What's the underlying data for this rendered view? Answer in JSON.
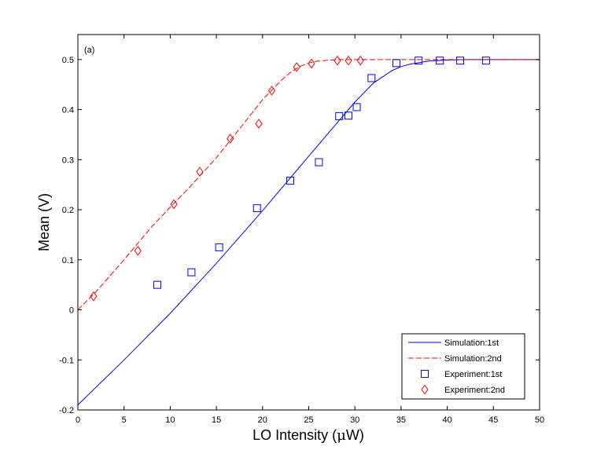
{
  "chart_data": {
    "type": "line",
    "annotation": "(a)",
    "xlabel_prefix": "LO Intensity (",
    "xlabel_mu": "μ",
    "xlabel_suffix": "W)",
    "ylabel": "Mean (V)",
    "xlim": [
      0,
      50
    ],
    "ylim": [
      -0.2,
      0.55
    ],
    "xticks": [
      0,
      5,
      10,
      15,
      20,
      25,
      30,
      35,
      40,
      45,
      50
    ],
    "yticks": [
      -0.2,
      -0.1,
      0,
      0.1,
      0.2,
      0.3,
      0.4,
      0.5
    ],
    "ytick_labels": [
      "-0.2",
      "-0.1",
      "0",
      "0.1",
      "0.2",
      "0.3",
      "0.4",
      "0.5"
    ],
    "grid": false,
    "legend_position": "bottom-right",
    "series": [
      {
        "name": "Simulation:1st",
        "kind": "line",
        "style": "solid",
        "color": "#0000ff",
        "x": [
          0,
          5,
          10,
          15,
          20,
          25,
          28,
          30,
          32,
          34,
          35,
          36,
          38,
          40,
          42,
          44,
          46,
          48,
          50
        ],
        "y": [
          -0.19,
          -0.1,
          -0.007,
          0.093,
          0.198,
          0.307,
          0.372,
          0.415,
          0.453,
          0.478,
          0.486,
          0.491,
          0.497,
          0.499,
          0.5,
          0.5,
          0.5,
          0.5,
          0.5
        ]
      },
      {
        "name": "Simulation:2nd",
        "kind": "line",
        "style": "dashed",
        "color": "#ff0000",
        "x": [
          0,
          2,
          5,
          8,
          10,
          12,
          15,
          18,
          20,
          22,
          23,
          24,
          25,
          26,
          28,
          30,
          35,
          40,
          45,
          50
        ],
        "y": [
          0,
          0.037,
          0.1,
          0.166,
          0.205,
          0.243,
          0.304,
          0.373,
          0.42,
          0.458,
          0.474,
          0.486,
          0.493,
          0.497,
          0.5,
          0.5,
          0.5,
          0.5,
          0.5,
          0.5
        ]
      },
      {
        "name": "Experiment:1st",
        "kind": "scatter",
        "marker": "square",
        "color": "#0000ff",
        "x": [
          8.6,
          12.3,
          15.3,
          19.4,
          23.0,
          26.1,
          28.3,
          29.3,
          30.2,
          31.8,
          34.5,
          36.9,
          39.2,
          41.4,
          44.2
        ],
        "y": [
          0.05,
          0.075,
          0.125,
          0.203,
          0.258,
          0.295,
          0.387,
          0.388,
          0.405,
          0.463,
          0.493,
          0.498,
          0.498,
          0.498,
          0.498
        ]
      },
      {
        "name": "Experiment:2nd",
        "kind": "scatter",
        "marker": "diamond",
        "color": "#ff0000",
        "x": [
          1.7,
          6.5,
          10.4,
          13.2,
          16.5,
          19.6,
          21.0,
          23.7,
          25.3,
          28.1,
          29.3,
          30.6
        ],
        "y": [
          0.027,
          0.118,
          0.211,
          0.276,
          0.342,
          0.372,
          0.438,
          0.485,
          0.492,
          0.498,
          0.498,
          0.498
        ]
      }
    ]
  }
}
